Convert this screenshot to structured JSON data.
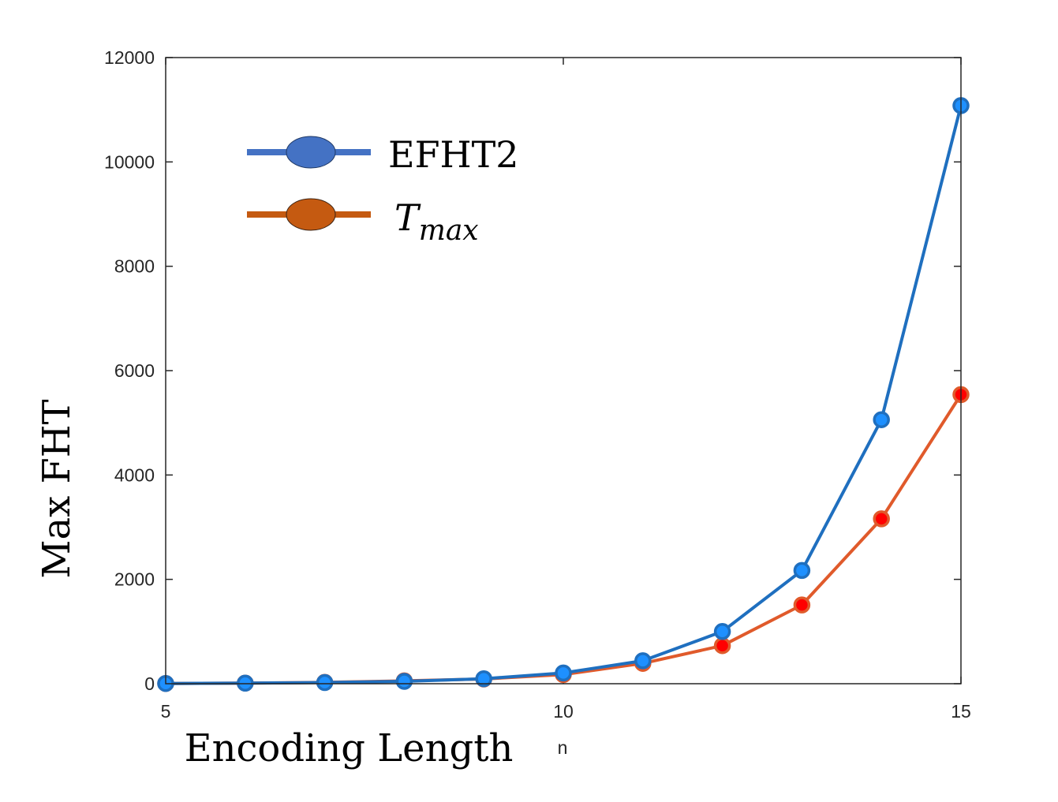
{
  "chart_data": {
    "type": "line",
    "xlabel": "n",
    "ylabel": "Max FHT",
    "caption": "Encoding Length",
    "x": [
      5,
      6,
      7,
      8,
      9,
      10,
      11,
      12,
      13,
      14,
      15
    ],
    "xlim": [
      5,
      15
    ],
    "ylim": [
      0,
      12000
    ],
    "xticks": [
      5,
      10,
      15
    ],
    "xtick_labels": [
      "5",
      "10",
      "15"
    ],
    "yticks": [
      0,
      2000,
      4000,
      6000,
      8000,
      10000,
      12000
    ],
    "ytick_labels": [
      "0",
      "2000",
      "4000",
      "6000",
      "8000",
      "10000",
      "12000"
    ],
    "grid": false,
    "legend_position": "top-left",
    "series": [
      {
        "name": "EFHT2",
        "color": "#1f6fbf",
        "marker_color": "#1e90ff",
        "legend_marker_color": "#4472c4",
        "values": [
          4,
          10,
          22,
          45,
          95,
          205,
          440,
          1000,
          2170,
          5060,
          11080
        ]
      },
      {
        "name": "T_max",
        "name_base": "T",
        "name_sub": "max",
        "color": "#e05a2b",
        "marker_color": "#ff0000",
        "legend_marker_color": "#c55a11",
        "values": [
          4,
          12,
          25,
          55,
          90,
          175,
          390,
          730,
          1510,
          3160,
          5540
        ]
      }
    ]
  }
}
